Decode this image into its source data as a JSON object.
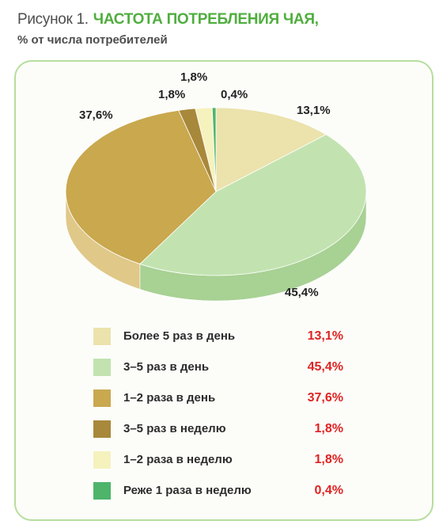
{
  "header": {
    "figure_prefix": "Рисунок 1.",
    "title": "ЧАСТОТА ПОТРЕБЛЕНИЯ ЧАЯ,",
    "subtitle": "% от числа потребителей"
  },
  "colors": {
    "title": "#4fae3e",
    "panel_border": "#b7dd9d",
    "legend_values": "#e02323"
  },
  "chart_data": {
    "type": "pie",
    "style": "3d",
    "legend_placement": "bottom",
    "slices": [
      {
        "label": "Более 5 раз в день",
        "value": 13.1,
        "value_label": "13,1%",
        "color": "#ece2ac",
        "side_color": "#d7c98a"
      },
      {
        "label": "3–5 раз в день",
        "value": 45.4,
        "value_label": "45,4%",
        "color": "#c2e3b0",
        "side_color": "#a8d194"
      },
      {
        "label": "1–2 раза в день",
        "value": 37.6,
        "value_label": "37,6%",
        "color": "#c9a84e",
        "side_color": "#e0c888"
      },
      {
        "label": "3–5 раз в неделю",
        "value": 1.8,
        "value_label": "1,8%",
        "color": "#a8883a",
        "side_color": "#8d7231"
      },
      {
        "label": "1–2 раза в неделю",
        "value": 1.8,
        "value_label": "1,8%",
        "color": "#f6f2bd",
        "side_color": "#e3dda0"
      },
      {
        "label": "Реже 1 раза в неделю",
        "value": 0.4,
        "value_label": "0,4%",
        "color": "#4db46a",
        "side_color": "#3a9954"
      }
    ]
  }
}
